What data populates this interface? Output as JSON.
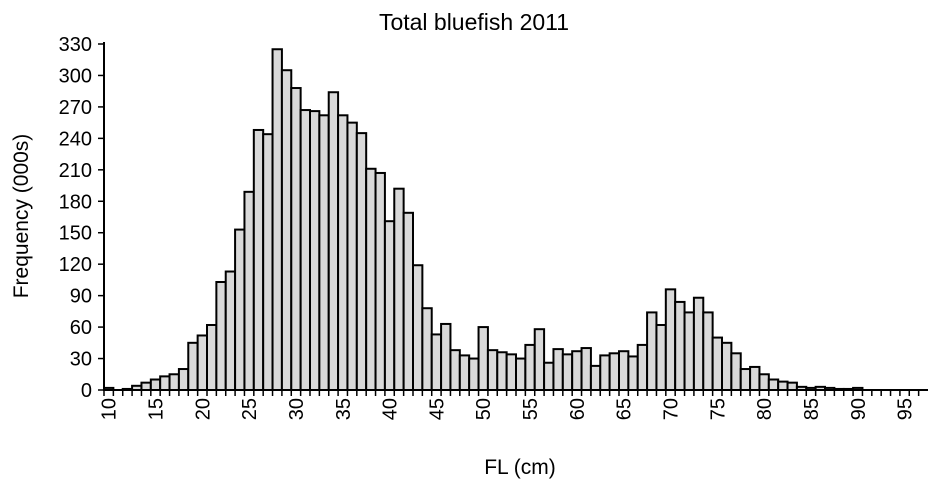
{
  "chart_data": {
    "type": "bar",
    "title": "Total bluefish 2011",
    "x_label": "FL (cm)",
    "y_label": "Frequency (000s)",
    "categories": [
      "10",
      null,
      null,
      null,
      null,
      "15",
      null,
      null,
      null,
      null,
      "20",
      null,
      null,
      null,
      null,
      "25",
      null,
      null,
      null,
      null,
      "30",
      null,
      null,
      null,
      null,
      "35",
      null,
      null,
      null,
      null,
      "40",
      null,
      null,
      null,
      null,
      "45",
      null,
      null,
      null,
      null,
      "50",
      null,
      null,
      null,
      null,
      "55",
      null,
      null,
      null,
      null,
      "60",
      null,
      null,
      null,
      null,
      "65",
      null,
      null,
      null,
      null,
      "70",
      null,
      null,
      null,
      null,
      "75",
      null,
      null,
      null,
      null,
      "80",
      null,
      null,
      null,
      null,
      "85",
      null,
      null,
      null,
      null,
      "90",
      null,
      null,
      null,
      null,
      "95",
      null,
      null
    ],
    "values": [
      2,
      0,
      1,
      4,
      7,
      10,
      13,
      15,
      20,
      45,
      52,
      62,
      103,
      113,
      153,
      189,
      248,
      244,
      325,
      305,
      288,
      267,
      266,
      262,
      284,
      262,
      255,
      245,
      211,
      207,
      161,
      192,
      169,
      119,
      78,
      53,
      63,
      38,
      33,
      30,
      60,
      38,
      36,
      34,
      30,
      43,
      58,
      26,
      39,
      34,
      37,
      40,
      23,
      33,
      35,
      37,
      32,
      43,
      74,
      62,
      96,
      84,
      74,
      88,
      74,
      50,
      45,
      35,
      20,
      22,
      15,
      10,
      8,
      7,
      3,
      2,
      3,
      2,
      1,
      1,
      2,
      0,
      0,
      0,
      0,
      0,
      0,
      0
    ],
    "color": "#d9d9d9",
    "ylim": [
      0,
      330
    ],
    "yticks": [
      0,
      30,
      60,
      90,
      120,
      150,
      180,
      210,
      240,
      270,
      300,
      330
    ],
    "grid": false
  }
}
